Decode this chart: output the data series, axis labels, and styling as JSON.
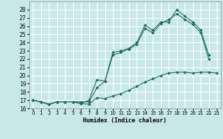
{
  "title": "",
  "xlabel": "Humidex (Indice chaleur)",
  "ylabel": "",
  "bg_color": "#c8e8e8",
  "grid_color": "#ffffff",
  "line_color": "#1a6b5a",
  "xlim": [
    -0.5,
    23.5
  ],
  "ylim": [
    16,
    29
  ],
  "yticks": [
    16,
    17,
    18,
    19,
    20,
    21,
    22,
    23,
    24,
    25,
    26,
    27,
    28
  ],
  "xticks": [
    0,
    1,
    2,
    3,
    4,
    5,
    6,
    7,
    8,
    9,
    10,
    11,
    12,
    13,
    14,
    15,
    16,
    17,
    18,
    19,
    20,
    21,
    22,
    23
  ],
  "series1": {
    "x": [
      0,
      1,
      2,
      3,
      4,
      5,
      6,
      7,
      8,
      9,
      10,
      11,
      12,
      13,
      14,
      15,
      16,
      17,
      18,
      19,
      20,
      21,
      22,
      23
    ],
    "y": [
      17.0,
      16.8,
      16.5,
      16.8,
      16.8,
      16.8,
      16.6,
      16.5,
      17.3,
      17.2,
      17.5,
      17.8,
      18.2,
      18.7,
      19.2,
      19.6,
      20.0,
      20.3,
      20.4,
      20.4,
      20.3,
      20.4,
      20.4,
      20.3
    ]
  },
  "series2": {
    "x": [
      0,
      1,
      2,
      3,
      4,
      5,
      6,
      7,
      8,
      9,
      10,
      11,
      12,
      13,
      14,
      15,
      16,
      17,
      18,
      19,
      20,
      21,
      22,
      23
    ],
    "y": [
      17.0,
      16.8,
      16.5,
      16.8,
      16.8,
      16.8,
      16.6,
      17.0,
      19.5,
      19.3,
      22.8,
      23.0,
      23.3,
      24.0,
      26.1,
      25.5,
      26.5,
      26.5,
      28.0,
      27.2,
      26.5,
      25.5,
      22.5,
      null
    ]
  },
  "series3": {
    "x": [
      0,
      1,
      2,
      3,
      4,
      5,
      6,
      7,
      8,
      9,
      10,
      11,
      12,
      13,
      14,
      15,
      16,
      17,
      18,
      19,
      20,
      21,
      22,
      23
    ],
    "y": [
      17.0,
      16.8,
      16.5,
      16.8,
      16.8,
      16.8,
      16.8,
      16.8,
      18.5,
      19.3,
      22.5,
      22.8,
      23.2,
      23.8,
      25.7,
      25.2,
      26.3,
      26.8,
      27.5,
      26.8,
      26.2,
      25.2,
      22.0,
      null
    ]
  }
}
